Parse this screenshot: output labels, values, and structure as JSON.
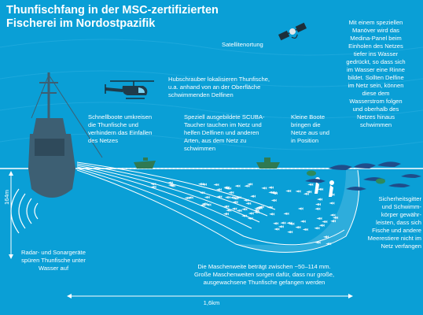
{
  "title": {
    "line1": "Thunfischfang in der MSC-zertifizierten",
    "line2": "Fischerei im Nordostpazifik"
  },
  "labels": {
    "satellite": "Satellitenortung",
    "helicopter": "Hubschrauber lokalisieren Thunfische,\nu.a. anhand von an der Oberfläche\nschwimmenden Delfinen",
    "medina": "Mit einem speziellen\nManöver wird das\nMedina-Panel beim\nEinholen des Netzes\ntiefer ins Wasser\ngedrückt, so dass sich\nim Wasser eine Rinne\nbildet. Sollten Delfine\nim Netz sein, können\ndiese dem\nWasserstrom folgen\nund oberhalb des\nNetzes hinaus\nschwimmen",
    "speedboats": "Schnellboote umkreisen\ndie Thunfische und\nverhindern das Einfallen\ndes Netzes",
    "scuba": "Speziell ausgebildete SCUBA-\nTaucher tauchen im Netz und\nhelfen Delfinen und anderen\nArten, aus dem Netz zu\nschwimmen",
    "smallboats": "Kleine Boote\nbringen die\nNetze aus und\nin Position",
    "safety": "Sicherheitsgitter\nund Schwimm-\nkörper gewähr-\nleisten, dass sich\nFische und andere\nMeerestiere nicht im\nNetz verfangen",
    "radar": "Radar- und Sonargeräte\nspüren Thunfische unter\nWasser auf",
    "mesh": "Die Maschenweite beträgt zwischen ~50–114 mm.\nGroße Maschenweiten sorgen dafür, dass nur große,\nausgewachsene Thunfische gefangen werden"
  },
  "dimensions": {
    "depth": "164m",
    "width": "1,6km"
  },
  "colors": {
    "background": "#0a9fd6",
    "surface_line": "#ffffff",
    "vessel": "#3d5f73",
    "boat": "#2f7a52",
    "dolphin": "#1f4d8a",
    "turtle": "#2e8a5a",
    "fish": "#ffffff"
  },
  "icons": [
    "satellite-icon",
    "helicopter-icon",
    "fishing-vessel-icon",
    "speedboat-icon",
    "small-boat-icon",
    "diver-icon",
    "dolphin-icon",
    "turtle-icon",
    "tuna-school-icon",
    "sonar-waves-icon"
  ]
}
